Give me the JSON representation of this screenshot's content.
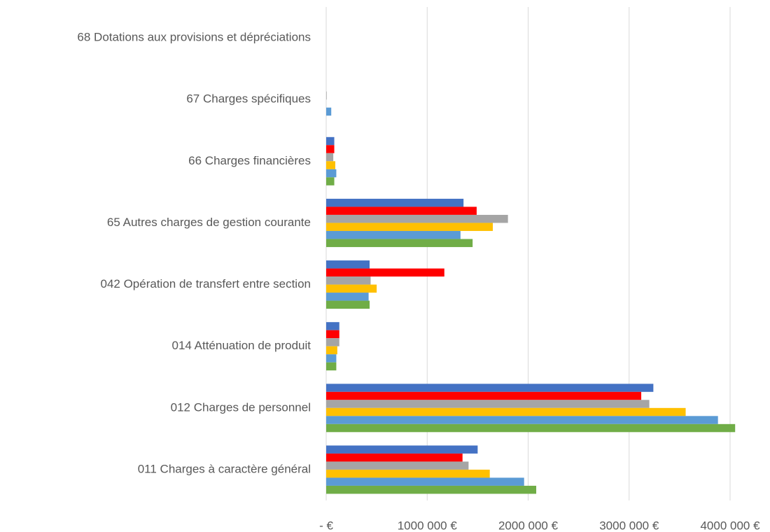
{
  "chart_data": {
    "type": "bar",
    "orientation": "horizontal",
    "categories": [
      "68 Dotations aux provisions et dépréciations",
      "67 Charges spécifiques",
      "66 Charges financières",
      "65 Autres charges de gestion courante",
      "042 Opération de transfert entre section",
      "014 Atténuation de produit",
      "012 Charges de personnel",
      "011 Charges à caractère général"
    ],
    "series": [
      {
        "color": "#4472c4",
        "values": [
          0,
          0,
          80000,
          1360000,
          430000,
          130000,
          3240000,
          1500000
        ]
      },
      {
        "color": "#ff0000",
        "values": [
          0,
          0,
          80000,
          1490000,
          1170000,
          130000,
          3120000,
          1350000
        ]
      },
      {
        "color": "#a5a5a5",
        "values": [
          0,
          5000,
          70000,
          1800000,
          440000,
          130000,
          3200000,
          1410000
        ]
      },
      {
        "color": "#ffc000",
        "values": [
          0,
          0,
          90000,
          1650000,
          500000,
          110000,
          3560000,
          1620000
        ]
      },
      {
        "color": "#5b9bd5",
        "values": [
          0,
          50000,
          100000,
          1330000,
          420000,
          100000,
          3880000,
          1960000
        ]
      },
      {
        "color": "#70ad47",
        "values": [
          0,
          0,
          80000,
          1450000,
          430000,
          100000,
          4050000,
          2080000
        ]
      }
    ],
    "xlim": [
      0,
      4000000
    ],
    "xticks": [
      {
        "value": 0,
        "label": "-  €"
      },
      {
        "value": 1000000,
        "label": "1000 000 €"
      },
      {
        "value": 2000000,
        "label": "2000 000 €"
      },
      {
        "value": 3000000,
        "label": "3000 000 €"
      },
      {
        "value": 4000000,
        "label": "4000 000 €"
      }
    ],
    "grid": true
  }
}
